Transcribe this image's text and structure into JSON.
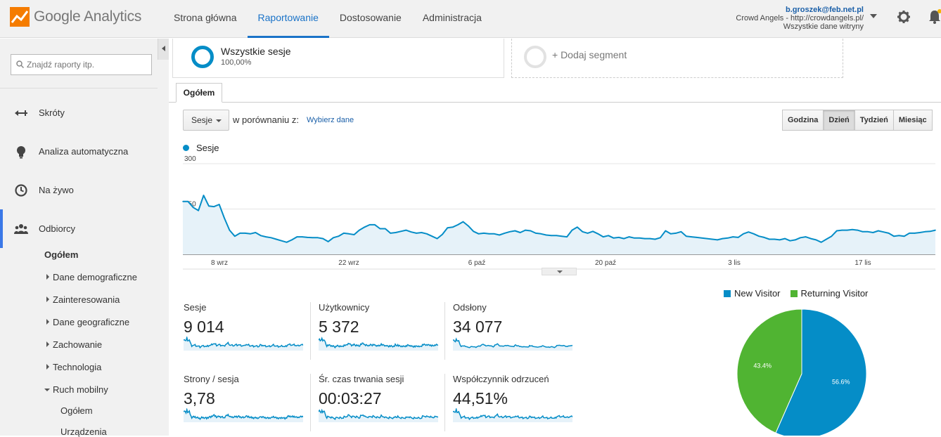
{
  "app": {
    "logo_text": "Google Analytics"
  },
  "nav": [
    {
      "label": "Strona główna",
      "active": false
    },
    {
      "label": "Raportowanie",
      "active": true
    },
    {
      "label": "Dostosowanie",
      "active": false
    },
    {
      "label": "Administracja",
      "active": false
    }
  ],
  "account": {
    "email": "b.groszek@feb.net.pl",
    "property": "Crowd Angels - http://crowdangels.pl/",
    "view": "Wszystkie dane witryny"
  },
  "sidebar": {
    "search_placeholder": "Znajdź raporty itp.",
    "items": [
      {
        "label": "Skróty",
        "icon": "shortcut-icon"
      },
      {
        "label": "Analiza automatyczna",
        "icon": "lightbulb-icon"
      },
      {
        "label": "Na żywo",
        "icon": "clock-icon"
      },
      {
        "label": "Odbiorcy",
        "icon": "people-icon",
        "active": true
      }
    ],
    "sub_items": {
      "overview": "Ogółem",
      "demographics": "Dane demograficzne",
      "interests": "Zainteresowania",
      "geo": "Dane geograficzne",
      "behavior": "Zachowanie",
      "technology": "Technologia",
      "mobile": "Ruch mobilny",
      "mobile_overview": "Ogółem",
      "mobile_devices": "Urządzenia"
    }
  },
  "segments": {
    "active": {
      "name": "Wszystkie sesje",
      "percent": "100,00%"
    },
    "add_label": "+ Dodaj segment"
  },
  "tab": {
    "label": "Ogółem"
  },
  "controls": {
    "metric": "Sesje",
    "compare_label": "w porównaniu z:",
    "compare_link": "Wybierz dane",
    "granularity": [
      {
        "label": "Godzina",
        "active": false
      },
      {
        "label": "Dzień",
        "active": true
      },
      {
        "label": "Tydzień",
        "active": false
      },
      {
        "label": "Miesiąc",
        "active": false
      }
    ]
  },
  "colors": {
    "primary": "#058dc7",
    "green": "#50b432",
    "fill": "#e6f2f9",
    "link": "#1a5fa8"
  },
  "chart_data": [
    {
      "type": "area",
      "series": [
        {
          "name": "Sesje",
          "values": [
            175,
            175,
            155,
            145,
            195,
            160,
            158,
            165,
            120,
            80,
            60,
            70,
            70,
            68,
            72,
            62,
            58,
            55,
            50,
            45,
            40,
            48,
            58,
            58,
            56,
            55,
            55,
            52,
            42,
            55,
            60,
            70,
            68,
            65,
            80,
            90,
            98,
            98,
            85,
            85,
            70,
            72,
            76,
            80,
            74,
            70,
            72,
            68,
            60,
            52,
            66,
            88,
            90,
            98,
            108,
            94,
            76,
            68,
            70,
            68,
            68,
            64,
            70,
            75,
            78,
            72,
            80,
            78,
            70,
            68,
            64,
            62,
            62,
            60,
            58,
            80,
            90,
            75,
            70,
            76,
            68,
            58,
            62,
            54,
            56,
            52,
            58,
            54,
            54,
            52,
            52,
            50,
            55,
            78,
            68,
            70,
            75,
            60,
            58,
            56,
            54,
            52,
            50,
            48,
            52,
            54,
            58,
            56,
            68,
            74,
            68,
            60,
            56,
            50,
            50,
            48,
            52,
            45,
            48,
            55,
            58,
            52,
            48,
            40,
            50,
            60,
            78,
            80,
            80,
            82,
            80,
            75,
            75,
            72,
            78,
            74,
            70,
            60,
            62,
            60,
            70,
            70,
            72,
            75,
            76,
            80
          ],
          "color": "#058dc7"
        }
      ],
      "x_ticks": [
        "8 wrz",
        "22 wrz",
        "6 paź",
        "20 paź",
        "3 lis",
        "17 lis"
      ],
      "y_ticks": [
        300,
        150
      ],
      "ylim": [
        0,
        300
      ],
      "legend_position": "top-left",
      "grid": true
    },
    {
      "type": "pie",
      "categories": [
        "New Visitor",
        "Returning Visitor"
      ],
      "values": [
        56.6,
        43.4
      ],
      "labels": [
        "56.6%",
        "43.4%"
      ],
      "colors": [
        "#058dc7",
        "#50b432"
      ],
      "legend_position": "top"
    }
  ],
  "scorecards": [
    {
      "label": "Sesje",
      "value": "9 014"
    },
    {
      "label": "Użytkownicy",
      "value": "5 372"
    },
    {
      "label": "Odsłony",
      "value": "34 077"
    },
    {
      "label": "Strony / sesja",
      "value": "3,78"
    },
    {
      "label": "Śr. czas trwania sesji",
      "value": "00:03:27"
    },
    {
      "label": "Współczynnik odrzuceń",
      "value": "44,51%"
    }
  ]
}
